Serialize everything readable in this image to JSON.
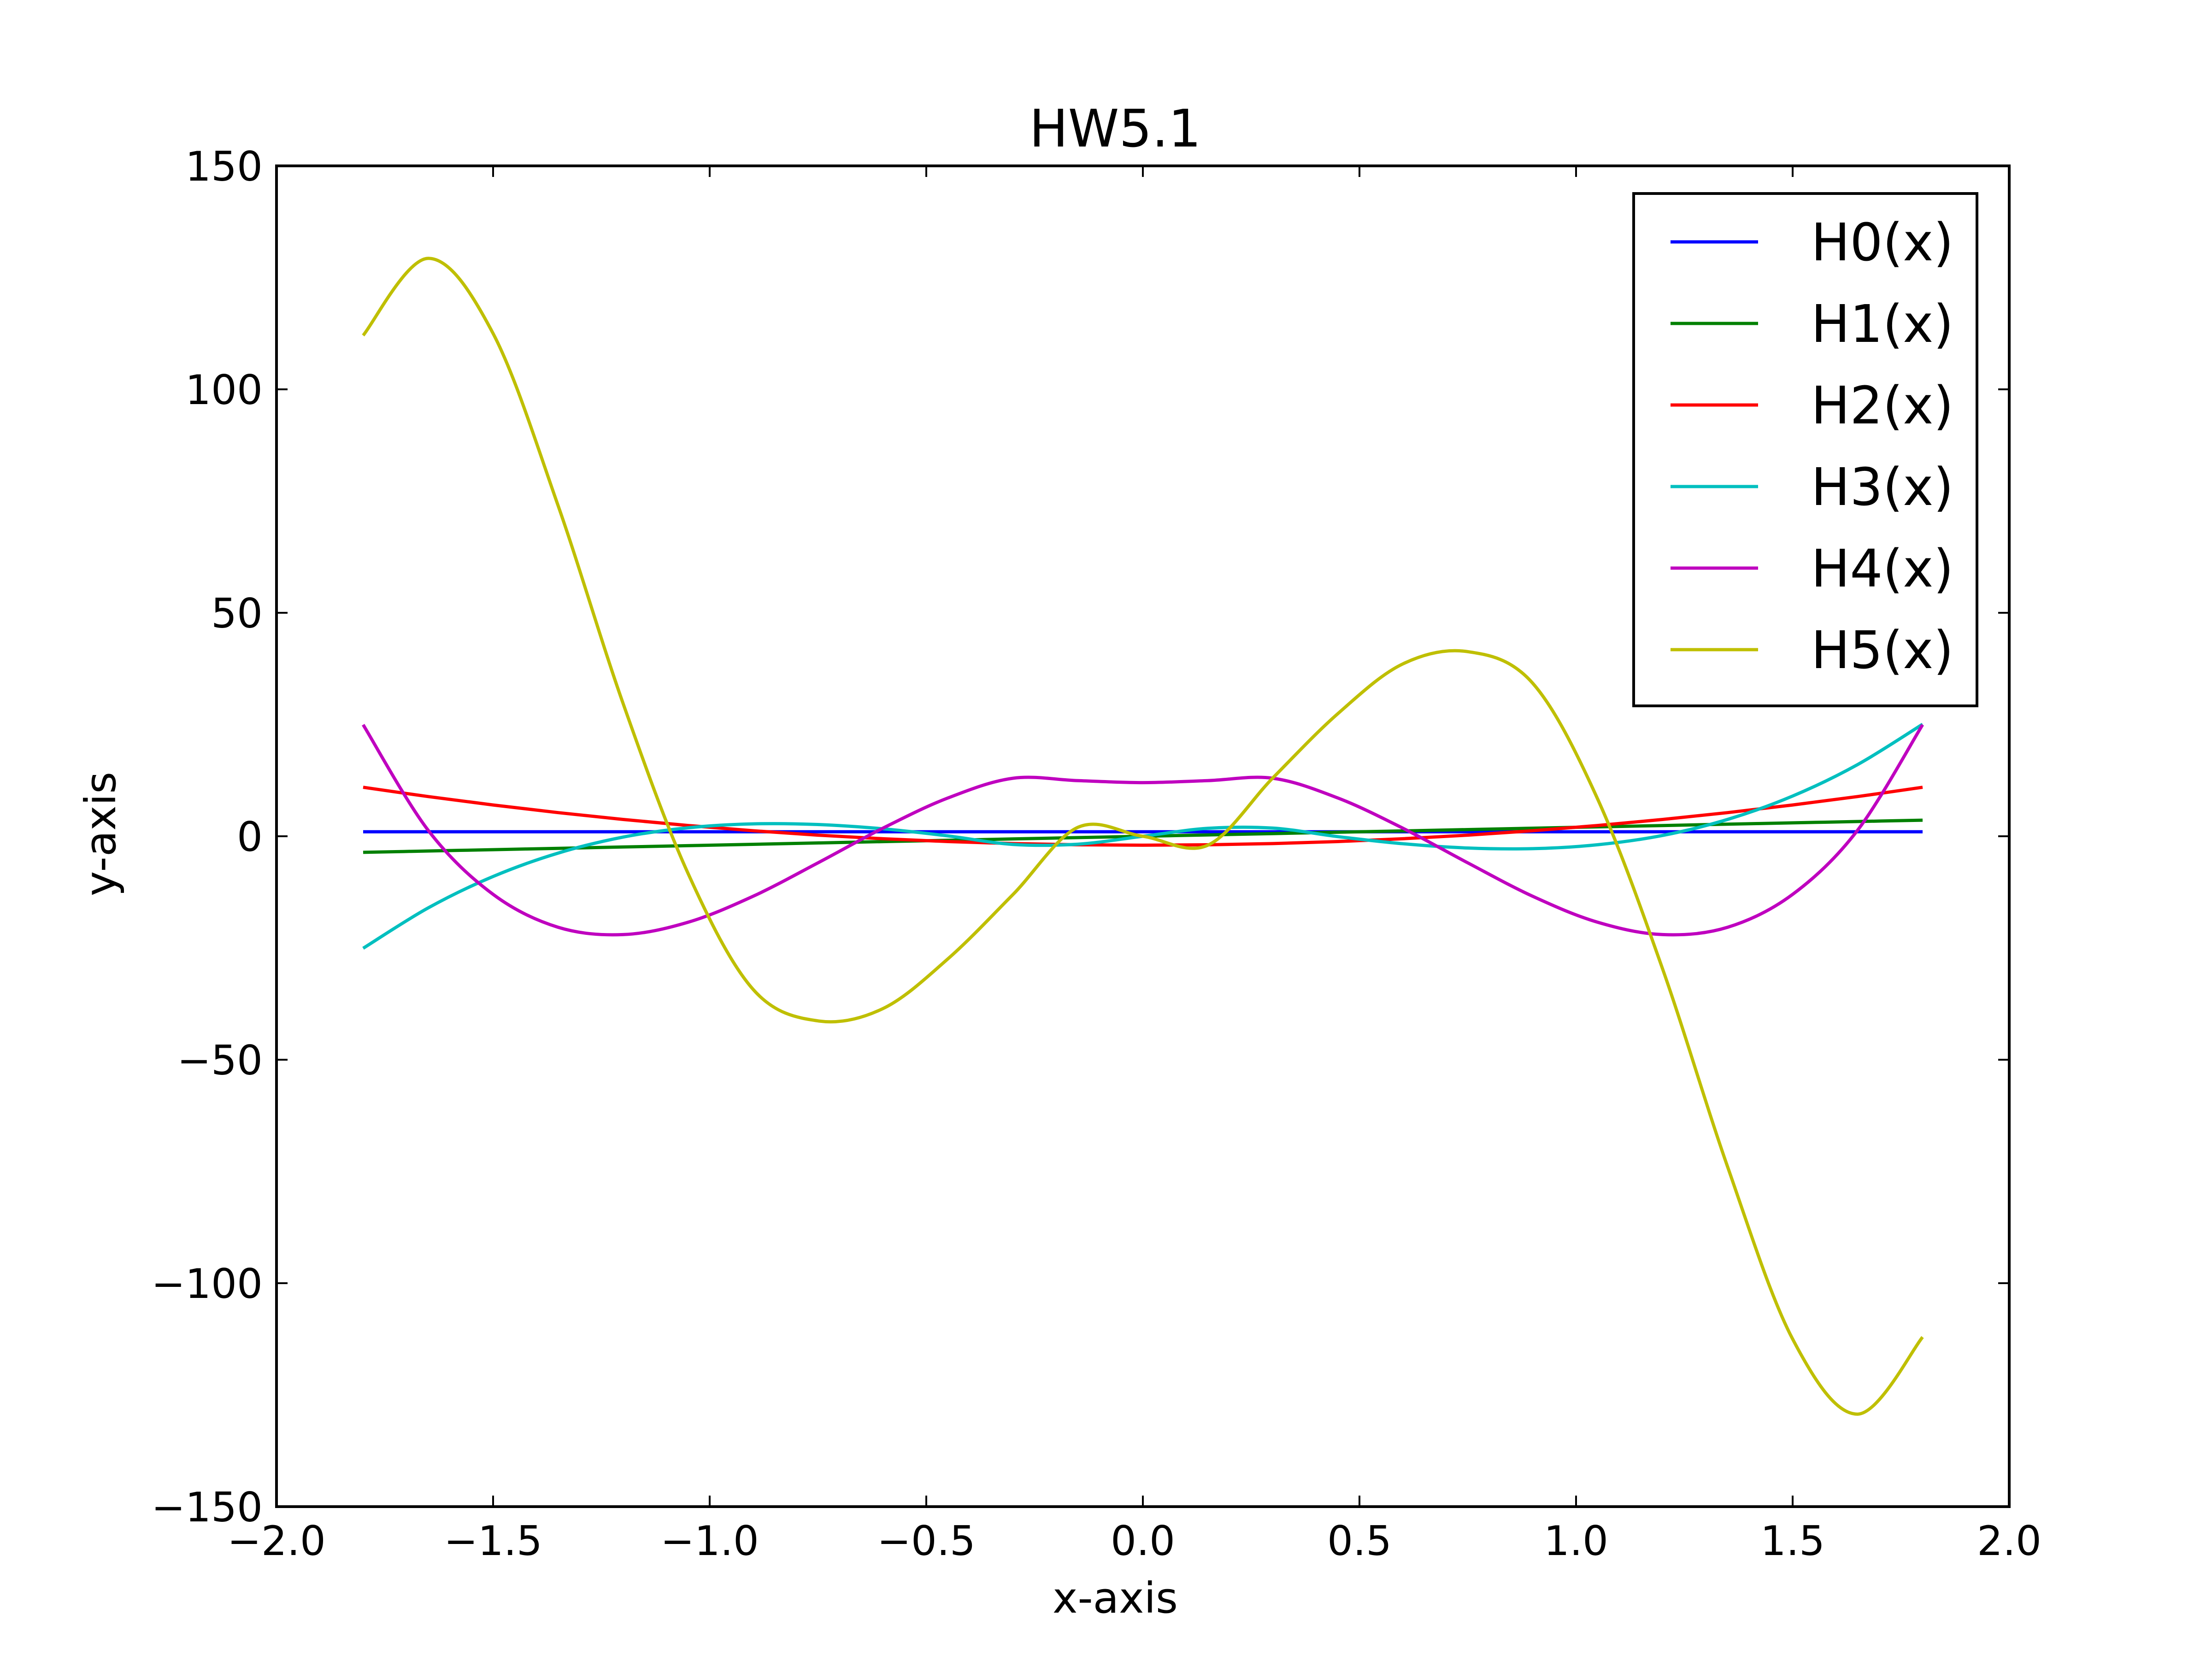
{
  "chart_data": {
    "type": "line",
    "title": "HW5.1",
    "xlabel": "x-axis",
    "ylabel": "y-axis",
    "xlim": [
      -2.0,
      2.0
    ],
    "ylim": [
      -150,
      150
    ],
    "xticks": [
      -2.0,
      -1.5,
      -1.0,
      -0.5,
      0.0,
      0.5,
      1.0,
      1.5,
      2.0
    ],
    "xtick_labels": [
      "−2.0",
      "−1.5",
      "−1.0",
      "−0.5",
      "0.0",
      "0.5",
      "1.0",
      "1.5",
      "2.0"
    ],
    "yticks": [
      150,
      100,
      50,
      0,
      -50,
      -100,
      -150
    ],
    "ytick_labels": [
      "150",
      "100",
      "50",
      "0",
      "−50",
      "−100",
      "−150"
    ],
    "grid": false,
    "legend_position": "top-right",
    "x": [
      -1.8,
      -1.65,
      -1.5,
      -1.35,
      -1.2,
      -1.05,
      -0.9,
      -0.75,
      -0.6,
      -0.45,
      -0.3,
      -0.15,
      0.0,
      0.15,
      0.3,
      0.45,
      0.6,
      0.75,
      0.9,
      1.05,
      1.2,
      1.35,
      1.5,
      1.65,
      1.8
    ],
    "series": [
      {
        "name": "H0(x)",
        "color": "#0000ff",
        "values": [
          1,
          1,
          1,
          1,
          1,
          1,
          1,
          1,
          1,
          1,
          1,
          1,
          1,
          1,
          1,
          1,
          1,
          1,
          1,
          1,
          1,
          1,
          1,
          1,
          1
        ]
      },
      {
        "name": "H1(x)",
        "color": "#008000",
        "values": [
          -3.6,
          -3.3,
          -3.0,
          -2.7,
          -2.4,
          -2.1,
          -1.8,
          -1.5,
          -1.2,
          -0.9,
          -0.6,
          -0.3,
          0.0,
          0.3,
          0.6,
          0.9,
          1.2,
          1.5,
          1.8,
          2.1,
          2.4,
          2.7,
          3.0,
          3.3,
          3.6
        ]
      },
      {
        "name": "H2(x)",
        "color": "#ff0000",
        "values": [
          10.96,
          8.89,
          7.0,
          5.29,
          3.76,
          2.41,
          1.24,
          0.25,
          -0.56,
          -1.19,
          -1.64,
          -1.91,
          -2.0,
          -1.91,
          -1.64,
          -1.19,
          -0.56,
          0.25,
          1.24,
          2.41,
          3.76,
          5.29,
          7.0,
          8.89,
          10.96
        ]
      },
      {
        "name": "H3(x)",
        "color": "#00bfbf",
        "values": [
          -25.06,
          -16.04,
          -9.0,
          -3.77,
          -0.19,
          1.9,
          2.77,
          2.63,
          1.67,
          0.08,
          -1.82,
          -1.77,
          0.0,
          1.77,
          1.82,
          -0.08,
          -1.67,
          -2.63,
          -2.77,
          -1.9,
          0.19,
          3.77,
          9.0,
          16.04,
          25.06
        ]
      },
      {
        "name": "H4(x)",
        "color": "#bf00bf",
        "values": [
          24.96,
          1.35,
          -13.0,
          -20.36,
          -22.0,
          -19.24,
          -13.43,
          -5.95,
          1.81,
          8.57,
          12.98,
          12.45,
          12.0,
          12.45,
          12.98,
          8.57,
          1.81,
          -5.95,
          -13.43,
          -19.24,
          -22.0,
          -20.36,
          -13.0,
          1.35,
          24.96
        ]
      },
      {
        "name": "H5(x)",
        "color": "#bfbf00",
        "values": [
          112.06,
          129.3,
          112.5,
          74.0,
          29.74,
          -8.3,
          -34.24,
          -41.31,
          -38.56,
          -27.42,
          -13.05,
          2.0,
          0.0,
          -2.0,
          13.05,
          27.42,
          38.56,
          41.31,
          34.24,
          8.3,
          -29.74,
          -74.0,
          -112.5,
          -129.3,
          -112.06
        ]
      }
    ]
  }
}
